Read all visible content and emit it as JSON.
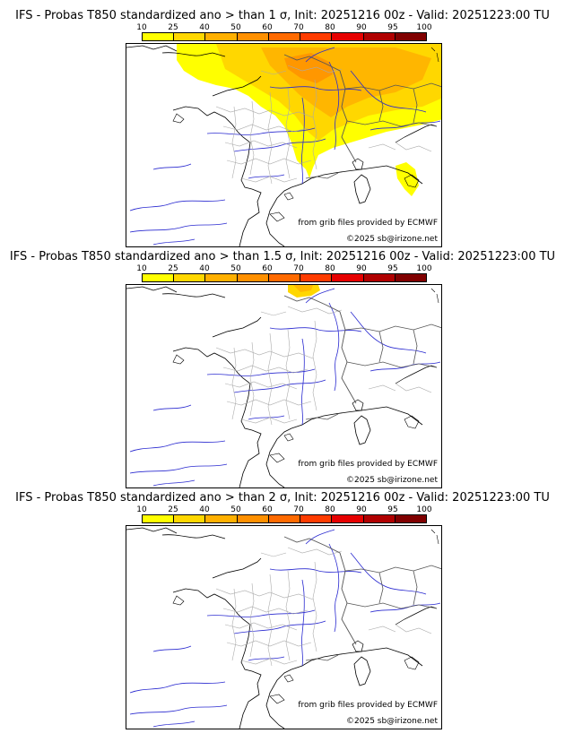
{
  "colorbar": {
    "ticks": [
      "10",
      "25",
      "40",
      "50",
      "60",
      "70",
      "80",
      "90",
      "95",
      "100"
    ],
    "colors": [
      "#ffff00",
      "#ffd700",
      "#ffb000",
      "#ff9000",
      "#ff6a00",
      "#ff3c00",
      "#e60000",
      "#b00000",
      "#800000"
    ]
  },
  "panels": [
    {
      "title": "IFS - Probas T850  standardized ano > than 1 σ, Init: 20251216 00z - Valid: 20251223:00 TU",
      "credit_source": "from grib files provided by ECMWF",
      "credit_copyright": "©2025 sb@irizone.net"
    },
    {
      "title": "IFS - Probas T850  standardized ano > than 1.5 σ, Init: 20251216 00z - Valid: 20251223:00 TU",
      "credit_source": "from grib files provided by ECMWF",
      "credit_copyright": "©2025 sb@irizone.net"
    },
    {
      "title": "IFS - Probas T850  standardized ano > than 2 σ, Init: 20251216 00z - Valid: 20251223:00 TU",
      "credit_source": "from grib files provided by ECMWF",
      "credit_copyright": "©2025 sb@irizone.net"
    }
  ],
  "colors": {
    "coast": "#000000",
    "rivers": "#2a2ad0",
    "borders": "#aaaaaa",
    "prob_low": "#ffff00",
    "prob_mid": "#ffd700",
    "prob_high": "#ffb000",
    "prob_top": "#ff9000"
  }
}
